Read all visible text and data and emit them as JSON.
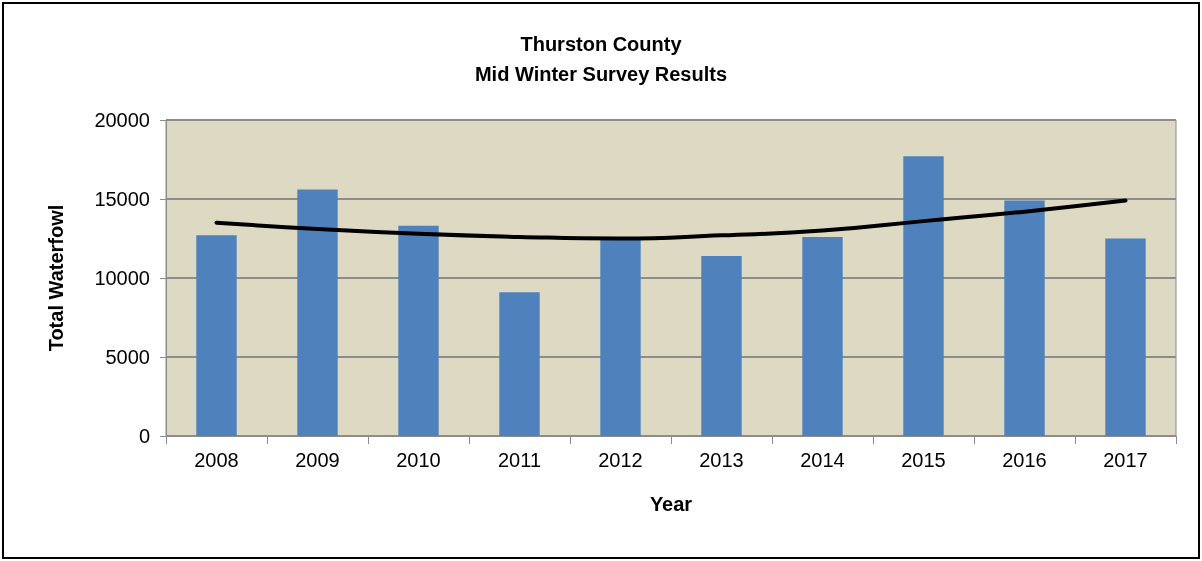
{
  "chart_data": {
    "type": "bar",
    "title": "Thurston County\nMid Winter Survey Results",
    "xlabel": "Year",
    "ylabel": "Total Waterfowl",
    "categories": [
      "2008",
      "2009",
      "2010",
      "2011",
      "2012",
      "2013",
      "2014",
      "2015",
      "2016",
      "2017"
    ],
    "series": [
      {
        "color": "#4f81bd",
        "values": [
          12700,
          15600,
          13300,
          9100,
          12500,
          11400,
          12600,
          17700,
          14900,
          12500
        ]
      },
      {
        "type": "line",
        "color": "#000000",
        "values": [
          13500,
          13100,
          12800,
          12600,
          12500,
          12700,
          13000,
          13600,
          14200,
          14900
        ]
      }
    ],
    "ylim": [
      0,
      20000
    ],
    "yticks": [
      0,
      5000,
      10000,
      15000,
      20000
    ],
    "grid": "y",
    "marker": "none",
    "line_style": "solid"
  }
}
